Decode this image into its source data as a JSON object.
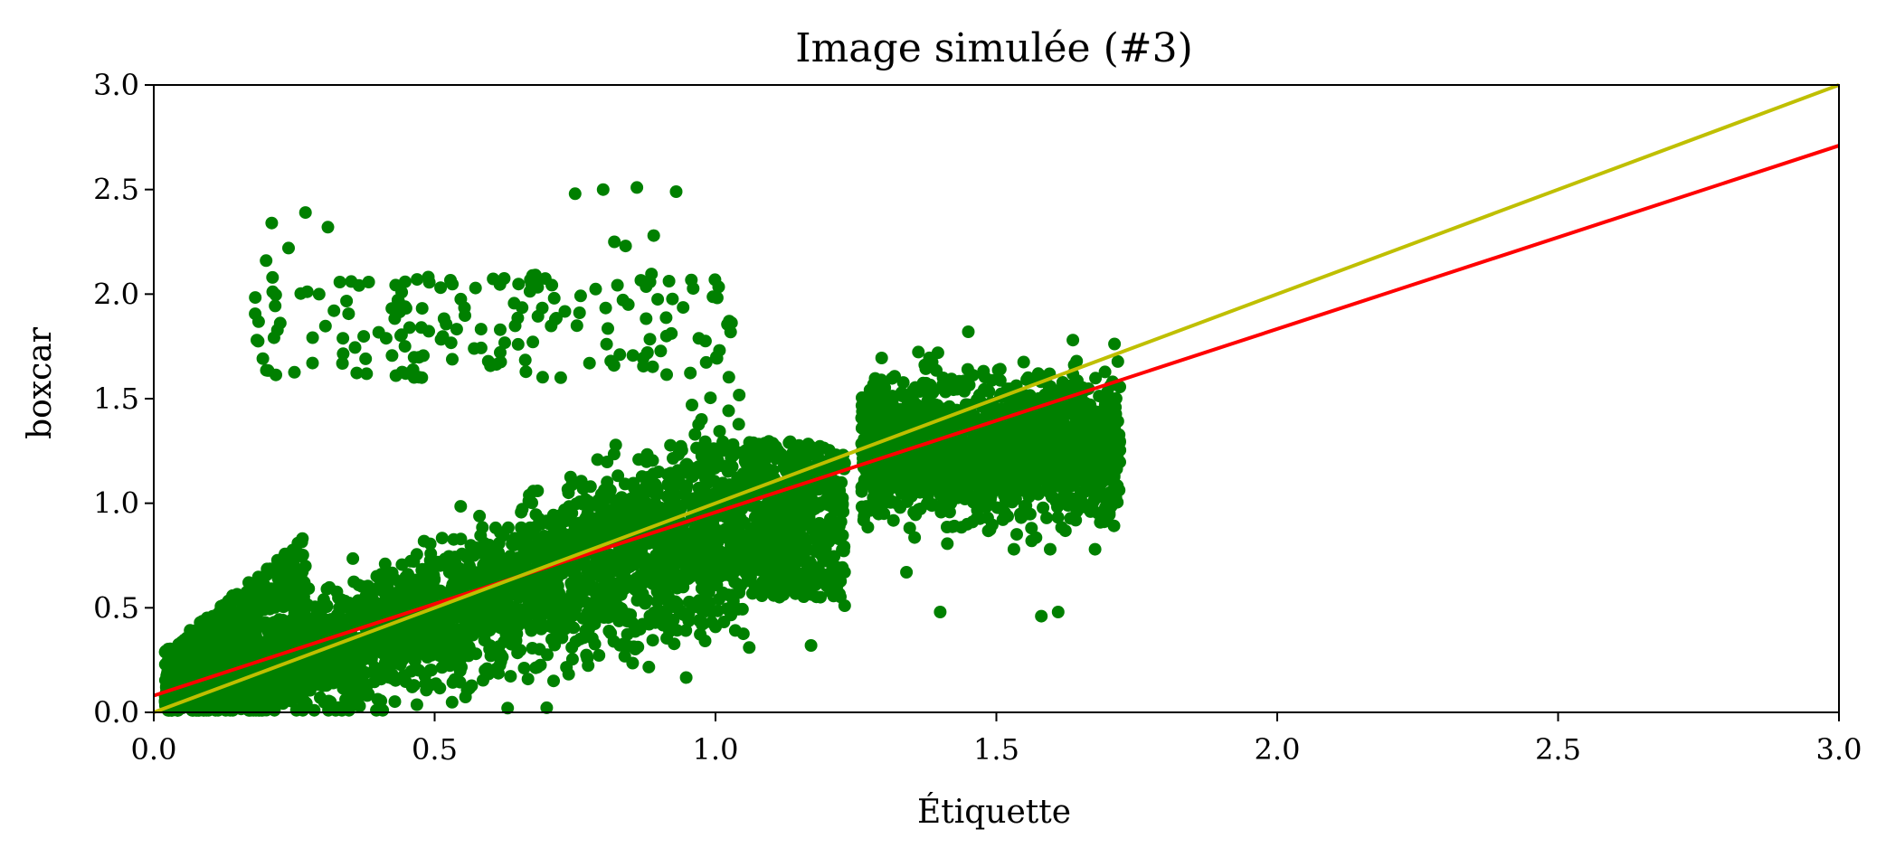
{
  "chart_data": {
    "type": "scatter",
    "title": "Image simulée (#3)",
    "xlabel": "Étiquette",
    "ylabel": "boxcar",
    "xlim": [
      0.0,
      3.0
    ],
    "ylim": [
      0.0,
      3.0
    ],
    "x_ticks": [
      "0.0",
      "0.5",
      "1.0",
      "1.5",
      "2.0",
      "2.5",
      "3.0"
    ],
    "y_ticks": [
      "0.0",
      "0.5",
      "1.0",
      "1.5",
      "2.0",
      "2.5",
      "3.0"
    ],
    "grid": false,
    "legend": "none",
    "colors": {
      "points": "#008000",
      "fit_line": "#ff0000",
      "identity_line": "#bfbf00"
    },
    "clusters": [
      {
        "x_range": [
          0.0,
          1.05
        ],
        "y_center": "0.85 * x",
        "spread": 0.25
      },
      {
        "x_range": [
          1.05,
          1.24
        ],
        "y_range": [
          0.5,
          1.3
        ]
      },
      {
        "x_range": [
          1.25,
          1.72
        ],
        "y_range": [
          0.8,
          1.75
        ]
      }
    ],
    "outliers": [
      {
        "x": 0.21,
        "y": 2.34
      },
      {
        "x": 0.27,
        "y": 2.39
      },
      {
        "x": 0.31,
        "y": 2.32
      },
      {
        "x": 0.75,
        "y": 2.48
      },
      {
        "x": 0.8,
        "y": 2.5
      },
      {
        "x": 0.86,
        "y": 2.51
      },
      {
        "x": 0.93,
        "y": 2.49
      },
      {
        "x": 0.89,
        "y": 2.28
      },
      {
        "x": 0.82,
        "y": 2.25
      },
      {
        "x": 0.84,
        "y": 2.23
      },
      {
        "x": 0.2,
        "y": 2.16
      },
      {
        "x": 0.24,
        "y": 2.22
      },
      {
        "x": 1.4,
        "y": 0.48
      },
      {
        "x": 1.61,
        "y": 0.48
      },
      {
        "x": 1.58,
        "y": 0.46
      },
      {
        "x": 1.34,
        "y": 0.67
      },
      {
        "x": 1.17,
        "y": 0.32
      },
      {
        "x": 1.23,
        "y": 0.51
      },
      {
        "x": 1.45,
        "y": 1.82
      },
      {
        "x": 1.06,
        "y": 0.31
      }
    ],
    "lines": [
      {
        "kind": "fit",
        "color": "red",
        "x": [
          0.0,
          3.0
        ],
        "y": [
          0.08,
          2.71
        ]
      },
      {
        "kind": "identity",
        "color": "yellow",
        "x": [
          0.0,
          3.0
        ],
        "y": [
          0.0,
          3.0
        ]
      }
    ]
  }
}
